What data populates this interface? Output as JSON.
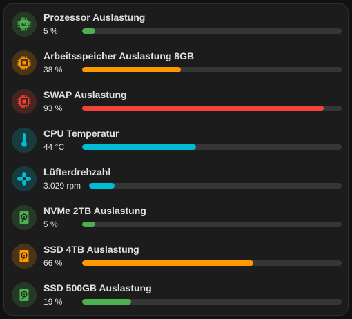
{
  "colors": {
    "green": "#4caf50",
    "orange": "#ff9800",
    "red": "#f44336",
    "cyan": "#00bcd4"
  },
  "sensors": [
    {
      "name": "Prozessor Auslastung",
      "value": "5 %",
      "percent": 5,
      "color": "#4caf50",
      "icon": "cpu-64-icon"
    },
    {
      "name": "Arbeitsspeicher Auslastung 8GB",
      "value": "38 %",
      "percent": 38,
      "color": "#ff9800",
      "icon": "memory-chip-icon"
    },
    {
      "name": "SWAP Auslastung",
      "value": "93 %",
      "percent": 93,
      "color": "#f44336",
      "icon": "memory-chip-icon"
    },
    {
      "name": "CPU Temperatur",
      "value": "44 °C",
      "percent": 44,
      "color": "#00bcd4",
      "icon": "thermometer-icon"
    },
    {
      "name": "Lüfterdrehzahl",
      "value": "3.029 rpm",
      "percent": 10,
      "color": "#00bcd4",
      "icon": "fan-icon"
    },
    {
      "name": "NVMe 2TB Auslastung",
      "value": "5 %",
      "percent": 5,
      "color": "#4caf50",
      "icon": "hard-disk-icon"
    },
    {
      "name": "SSD 4TB Auslastung",
      "value": "66 %",
      "percent": 66,
      "color": "#ff9800",
      "icon": "hard-disk-icon"
    },
    {
      "name": "SSD 500GB Auslastung",
      "value": "19 %",
      "percent": 19,
      "color": "#4caf50",
      "icon": "hard-disk-icon"
    }
  ]
}
